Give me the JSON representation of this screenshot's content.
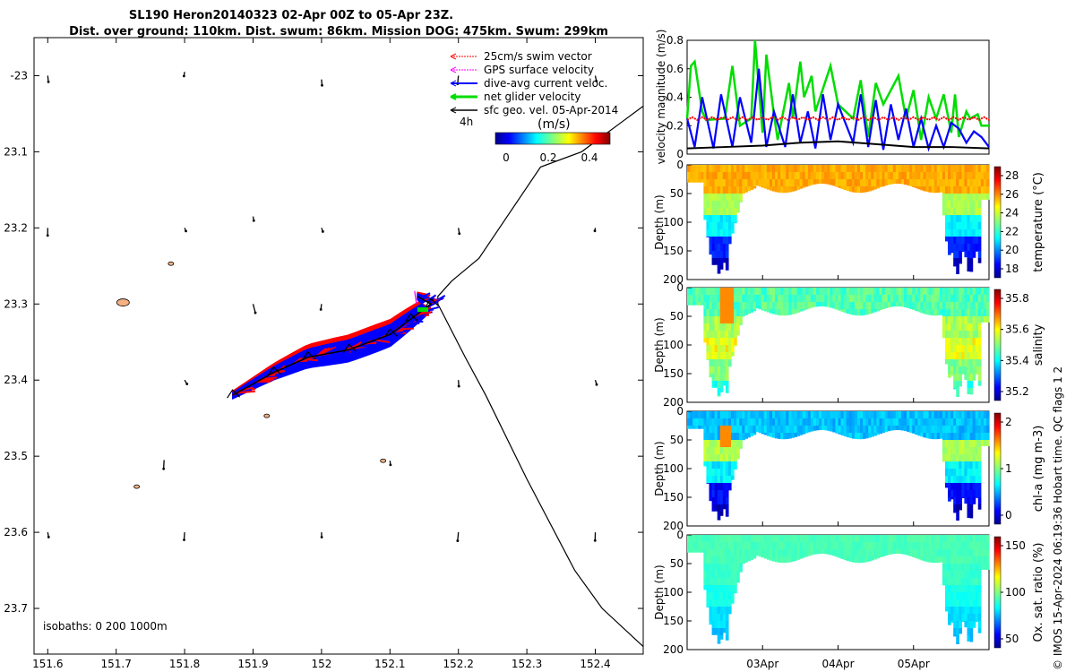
{
  "title_line1": "SL190 Heron20140323 02-Apr 00Z to 05-Apr 23Z.",
  "title_line2": "Dist. over ground: 110km. Dist. swum: 86km. Mission DOG: 475km. Swum: 299km",
  "legend": [
    {
      "label": "25cm/s swim vector",
      "color": "#ff0000"
    },
    {
      "label": "GPS surface velocity",
      "color": "#ff00ff"
    },
    {
      "label": "dive-avg current veloc.",
      "color": "#0000ff"
    },
    {
      "label": "net glider velocity",
      "color": "#00dd00"
    },
    {
      "label": "sfc geo. vel. 05-Apr-2014",
      "color": "#000000"
    }
  ],
  "legend_scale_label": "4h",
  "colorbar": {
    "unit": "(m/s)",
    "ticks": [
      "0",
      "0.2",
      "0.4"
    ]
  },
  "isobaths_label": "isobaths: 0   200  1000m",
  "credit": "© IMOS 15-Apr-2024 06:19:36 Hobart time. QC flags 1  2",
  "colors": {
    "red": "#ff0000",
    "blue": "#0000ff",
    "green": "#00dd00",
    "black": "#000000",
    "island": "#f4b183"
  },
  "chart_data": [
    {
      "type": "scatter",
      "name": "track map",
      "xlim": [
        151.58,
        152.47
      ],
      "ylim": [
        -23.76,
        -22.95
      ],
      "x_ticks": [
        "151.6",
        "151.7",
        "151.8",
        "151.9",
        "152",
        "152.1",
        "152.2",
        "152.3",
        "152.4"
      ],
      "y_ticks": [
        "-23",
        "23.1",
        "23.2",
        "23.3",
        "23.4",
        "23.5",
        "23.6",
        "23.7"
      ],
      "isobath": [
        [
          152.47,
          -23.04
        ],
        [
          152.44,
          -23.06
        ],
        [
          152.38,
          -23.1
        ],
        [
          152.32,
          -23.12
        ],
        [
          152.23,
          -23.24
        ],
        [
          152.19,
          -23.27
        ],
        [
          152.17,
          -23.29
        ],
        [
          152.17,
          -23.3
        ],
        [
          152.21,
          -23.37
        ],
        [
          152.24,
          -23.42
        ],
        [
          152.3,
          -23.53
        ],
        [
          152.37,
          -23.65
        ],
        [
          152.41,
          -23.7
        ],
        [
          152.47,
          -23.75
        ]
      ],
      "glider_track": [
        [
          151.87,
          -23.42
        ],
        [
          151.93,
          -23.39
        ],
        [
          151.98,
          -23.37
        ],
        [
          152.04,
          -23.36
        ],
        [
          152.1,
          -23.34
        ],
        [
          152.13,
          -23.32
        ],
        [
          152.16,
          -23.3
        ],
        [
          152.14,
          -23.29
        ]
      ],
      "islands": [
        [
          151.71,
          -23.298
        ],
        [
          151.78,
          -23.247
        ],
        [
          151.73,
          -23.54
        ],
        [
          151.92,
          -23.447
        ],
        [
          152.09,
          -23.506
        ]
      ],
      "geo_vectors": [
        [
          151.6,
          -23.0
        ],
        [
          151.8,
          -22.995
        ],
        [
          152.0,
          -23.005
        ],
        [
          152.2,
          -23.0
        ],
        [
          152.4,
          -23.0
        ],
        [
          151.6,
          -23.2
        ],
        [
          151.8,
          -23.2
        ],
        [
          151.9,
          -23.185
        ],
        [
          152.0,
          -23.2
        ],
        [
          152.2,
          -23.2
        ],
        [
          152.4,
          -23.2
        ],
        [
          151.9,
          -23.3
        ],
        [
          152.0,
          -23.3
        ],
        [
          151.8,
          -23.4
        ],
        [
          152.2,
          -23.4
        ],
        [
          152.4,
          -23.4
        ],
        [
          151.77,
          -23.505
        ],
        [
          152.1,
          -23.506
        ],
        [
          151.6,
          -23.6
        ],
        [
          151.8,
          -23.6
        ],
        [
          152.0,
          -23.6
        ],
        [
          152.2,
          -23.6
        ],
        [
          152.4,
          -23.6
        ]
      ]
    },
    {
      "type": "line",
      "name": "velocity magnitude",
      "ylabel": "velocity magnitude (m/s)",
      "ylim": [
        0,
        0.8
      ],
      "y_ticks": [
        "0",
        "0.2",
        "0.4",
        "0.6",
        "0.8"
      ],
      "x_range_days": [
        0,
        4
      ],
      "series": [
        {
          "name": "net glider velocity",
          "color": "#00dd00",
          "t": [
            0,
            0.05,
            0.1,
            0.2,
            0.25,
            0.5,
            0.6,
            0.7,
            0.85,
            0.9,
            1.0,
            1.05,
            1.15,
            1.2,
            1.35,
            1.4,
            1.5,
            1.55,
            1.65,
            1.7,
            1.9,
            2.0,
            2.2,
            2.3,
            2.4,
            2.5,
            2.6,
            2.8,
            2.9,
            3.0,
            3.1,
            3.2,
            3.3,
            3.4,
            3.5,
            3.55,
            3.6,
            3.7,
            3.75,
            3.85,
            3.9,
            4.0
          ],
          "values": [
            0.25,
            0.62,
            0.65,
            0.3,
            0.24,
            0.25,
            0.62,
            0.2,
            0.25,
            0.8,
            0.15,
            0.7,
            0.28,
            0.1,
            0.5,
            0.25,
            0.65,
            0.4,
            0.55,
            0.3,
            0.62,
            0.35,
            0.25,
            0.52,
            0.12,
            0.5,
            0.35,
            0.55,
            0.25,
            0.45,
            0.1,
            0.4,
            0.25,
            0.42,
            0.15,
            0.42,
            0.12,
            0.3,
            0.25,
            0.28,
            0.2,
            0.2
          ]
        },
        {
          "name": "dive-avg current veloc.",
          "color": "#0000ff",
          "t": [
            0,
            0.1,
            0.2,
            0.35,
            0.45,
            0.6,
            0.7,
            0.85,
            0.95,
            1.05,
            1.15,
            1.3,
            1.4,
            1.5,
            1.6,
            1.7,
            1.8,
            1.9,
            2.0,
            2.2,
            2.3,
            2.4,
            2.5,
            2.6,
            2.7,
            2.8,
            2.9,
            3.0,
            3.1,
            3.2,
            3.3,
            3.4,
            3.5,
            3.6,
            3.7,
            3.8,
            3.9,
            4.0
          ],
          "values": [
            0.25,
            0.05,
            0.4,
            0.04,
            0.42,
            0.05,
            0.4,
            0.08,
            0.6,
            0.05,
            0.3,
            0.05,
            0.42,
            0.08,
            0.3,
            0.04,
            0.42,
            0.1,
            0.35,
            0.08,
            0.42,
            0.05,
            0.38,
            0.03,
            0.35,
            0.1,
            0.32,
            0.05,
            0.25,
            0.04,
            0.2,
            0.05,
            0.22,
            0.18,
            0.08,
            0.16,
            0.12,
            0.05
          ]
        },
        {
          "name": "25cm/s swim vector",
          "color": "#ff0000",
          "t": [
            0,
            4
          ],
          "values": [
            0.25,
            0.25
          ]
        },
        {
          "name": "sfc geo. vel.",
          "color": "#000000",
          "t": [
            0,
            0.5,
            1.0,
            1.5,
            2.0,
            2.5,
            3.0,
            3.5,
            4.0
          ],
          "values": [
            0.04,
            0.05,
            0.06,
            0.08,
            0.09,
            0.07,
            0.05,
            0.05,
            0.04
          ]
        }
      ]
    },
    {
      "type": "heatmap",
      "name": "temperature",
      "ylabel": "Depth (m)",
      "cbar_label": "temperature (°C)",
      "ylim": [
        200,
        0
      ],
      "y_ticks": [
        "0",
        "50",
        "100",
        "150",
        "200"
      ],
      "cbar_ticks": [
        "18",
        "20",
        "22",
        "24",
        "26",
        "28"
      ],
      "x_ticks": [
        "03Apr",
        "04Apr",
        "05Apr"
      ],
      "surface_value": 26.5,
      "deep_value": 18
    },
    {
      "type": "heatmap",
      "name": "salinity",
      "ylabel": "Depth (m)",
      "cbar_label": "salinity",
      "ylim": [
        200,
        0
      ],
      "y_ticks": [
        "0",
        "50",
        "100",
        "150",
        "200"
      ],
      "cbar_ticks": [
        "35.2",
        "35.4",
        "35.6",
        "35.8"
      ],
      "x_ticks": [
        "03Apr",
        "04Apr",
        "05Apr"
      ],
      "surface_value": 35.5,
      "deep_value": 35.45
    },
    {
      "type": "heatmap",
      "name": "chl-a",
      "ylabel": "Depth (m)",
      "cbar_label": "chl-a (mg m-3)",
      "ylim": [
        200,
        0
      ],
      "y_ticks": [
        "0",
        "50",
        "100",
        "150",
        "200"
      ],
      "cbar_ticks": [
        "0",
        "1",
        "2"
      ],
      "x_ticks": [
        "03Apr",
        "04Apr",
        "05Apr"
      ],
      "surface_value": 0.7,
      "deep_value": 0.1
    },
    {
      "type": "heatmap",
      "name": "oxygen saturation",
      "ylabel": "Depth (m)",
      "cbar_label": "Ox. sat. ratio (%)",
      "ylim": [
        200,
        0
      ],
      "y_ticks": [
        "0",
        "50",
        "100",
        "150",
        "200"
      ],
      "cbar_ticks": [
        "50",
        "100",
        "150"
      ],
      "x_ticks": [
        "03Apr",
        "04Apr",
        "05Apr"
      ],
      "surface_value": 105,
      "deep_value": 85
    }
  ]
}
